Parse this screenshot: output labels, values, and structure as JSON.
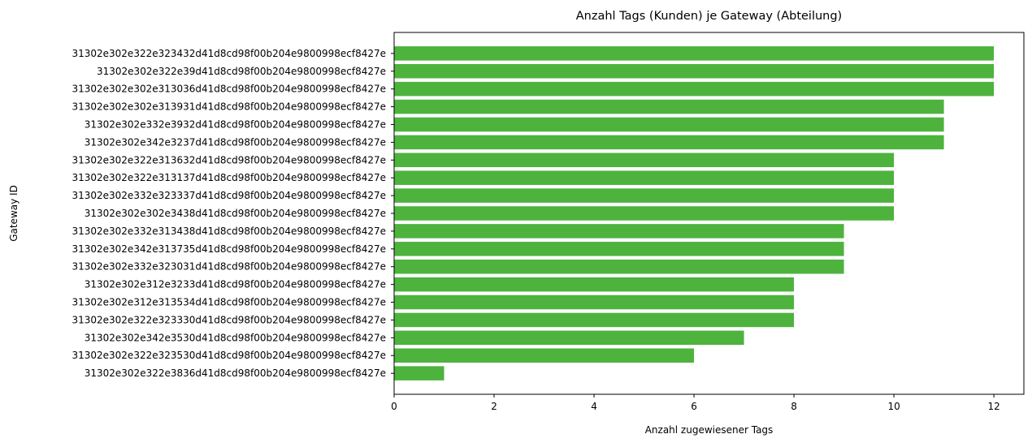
{
  "chart_data": {
    "type": "bar",
    "orientation": "horizontal",
    "title": "Anzahl Tags (Kunden) je Gateway (Abteilung)",
    "xlabel": "Anzahl zugewiesener Tags",
    "ylabel": "Gateway ID",
    "xlim": [
      0,
      12.6
    ],
    "xticks": [
      "0",
      "2",
      "4",
      "6",
      "8",
      "10",
      "12"
    ],
    "grid": false,
    "bar_color": "#4db33d",
    "categories": [
      "31302e302e322e323432d41d8cd98f00b204e9800998ecf8427e",
      "31302e302e322e39d41d8cd98f00b204e9800998ecf8427e",
      "31302e302e302e313036d41d8cd98f00b204e9800998ecf8427e",
      "31302e302e302e313931d41d8cd98f00b204e9800998ecf8427e",
      "31302e302e332e3932d41d8cd98f00b204e9800998ecf8427e",
      "31302e302e342e3237d41d8cd98f00b204e9800998ecf8427e",
      "31302e302e322e313632d41d8cd98f00b204e9800998ecf8427e",
      "31302e302e322e313137d41d8cd98f00b204e9800998ecf8427e",
      "31302e302e332e323337d41d8cd98f00b204e9800998ecf8427e",
      "31302e302e302e3438d41d8cd98f00b204e9800998ecf8427e",
      "31302e302e332e313438d41d8cd98f00b204e9800998ecf8427e",
      "31302e302e342e313735d41d8cd98f00b204e9800998ecf8427e",
      "31302e302e332e323031d41d8cd98f00b204e9800998ecf8427e",
      "31302e302e312e3233d41d8cd98f00b204e9800998ecf8427e",
      "31302e302e312e313534d41d8cd98f00b204e9800998ecf8427e",
      "31302e302e322e323330d41d8cd98f00b204e9800998ecf8427e",
      "31302e302e342e3530d41d8cd98f00b204e9800998ecf8427e",
      "31302e302e322e323530d41d8cd98f00b204e9800998ecf8427e",
      "31302e302e322e3836d41d8cd98f00b204e9800998ecf8427e"
    ],
    "values": [
      12,
      12,
      12,
      11,
      11,
      11,
      10,
      10,
      10,
      10,
      9,
      9,
      9,
      8,
      8,
      8,
      7,
      6,
      1
    ]
  }
}
